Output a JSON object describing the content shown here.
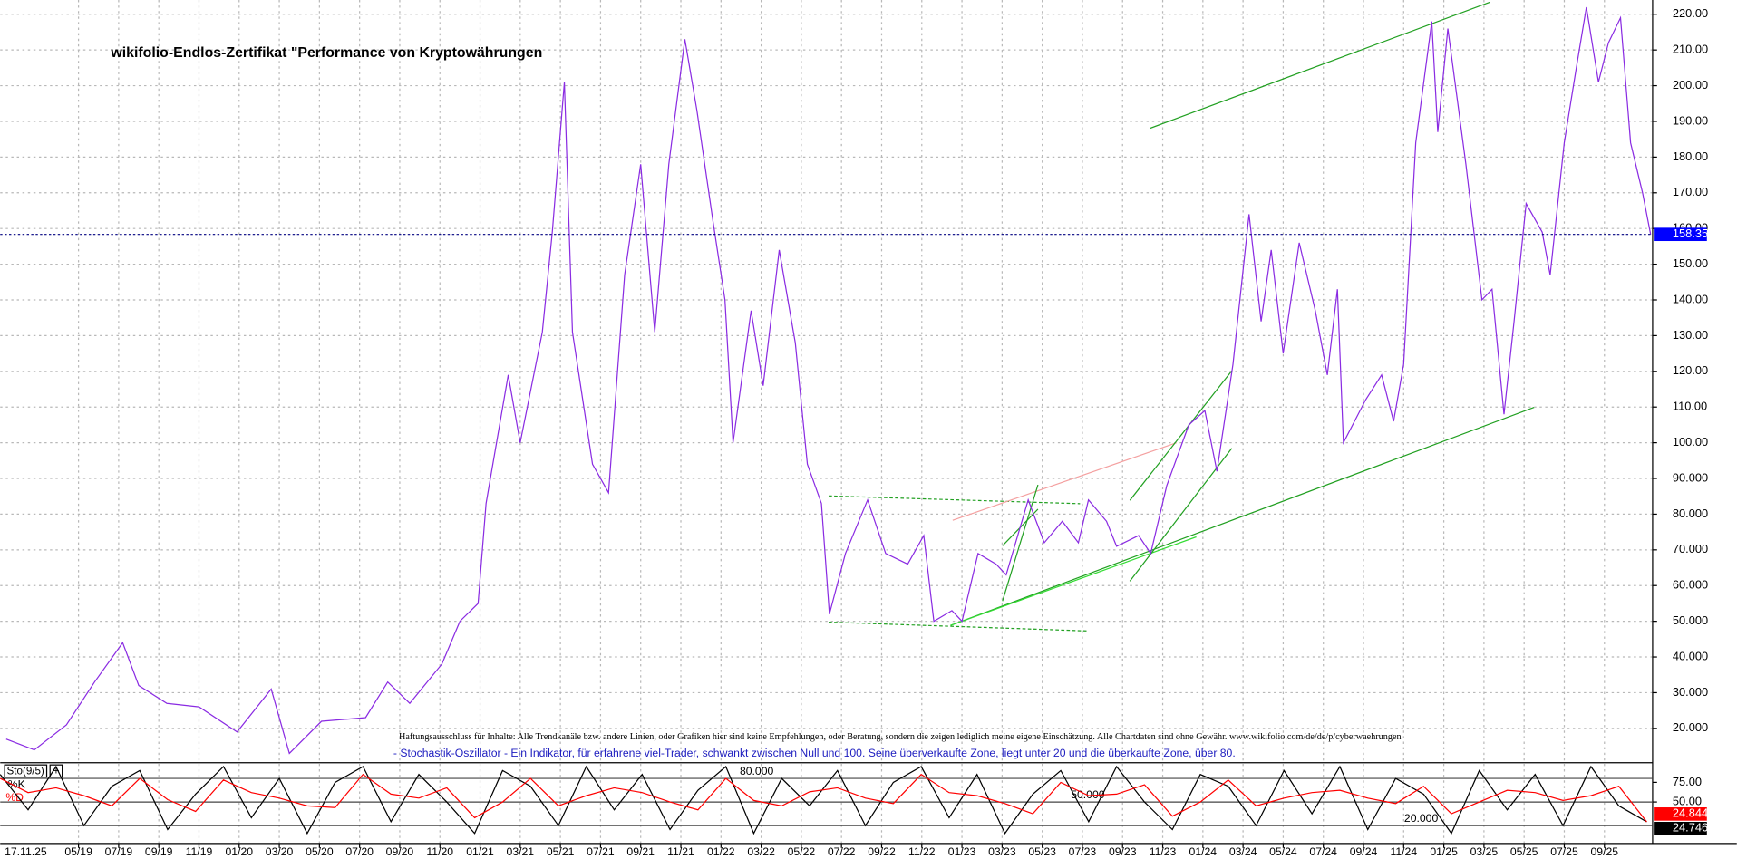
{
  "chart_data": [
    {
      "type": "line",
      "title": "wikifolio-Endlos-Zertifikat \"Performance von Kryptowährungen",
      "disclaimer": "Haftungsausschluss für Inhalte: Alle Trendkanäle bzw. andere Linien, oder Grafiken hier sind keine Empfehlungen, oder Beratung, sondern die zeigen lediglich meine eigene Einschätzung. Alle Chartdaten sind ohne Gewähr.  www.wikifolio.com/de/de/p/cyberwaehrungen",
      "cursor_date": "17.11.25",
      "color": "#8a2be2",
      "x": [
        0.3,
        1.7,
        3.3,
        4.7,
        6.1,
        6.9,
        8.3,
        9.9,
        11.8,
        13.5,
        14.4,
        16.0,
        18.2,
        19.3,
        20.4,
        22.0,
        22.9,
        23.8,
        24.2,
        25.3,
        25.9,
        27.0,
        27.5,
        28.1,
        28.5,
        29.5,
        30.3,
        31.1,
        31.9,
        32.6,
        33.3,
        34.1,
        34.7,
        35.5,
        36.1,
        36.5,
        37.4,
        38.0,
        38.8,
        39.6,
        40.2,
        40.9,
        41.3,
        42.1,
        43.2,
        44.1,
        45.2,
        46.0,
        46.5,
        47.4,
        47.9,
        48.7,
        49.6,
        50.1,
        51.2,
        52.0,
        52.9,
        53.7,
        54.2,
        55.1,
        55.6,
        56.7,
        57.3,
        58.1,
        59.2,
        60.0,
        60.6,
        61.4,
        62.2,
        62.8,
        63.3,
        63.9,
        64.7,
        65.5,
        66.1,
        66.6,
        66.9,
        68.0,
        68.8,
        69.4,
        69.9,
        70.5,
        71.3,
        71.6,
        72.1,
        73.0,
        73.8,
        74.3,
        74.9,
        75.4,
        76.0,
        76.8,
        77.2,
        77.9,
        78.5,
        79.0,
        79.6,
        80.1,
        80.7,
        81.2,
        81.8,
        82.2
      ],
      "values": [
        17,
        14,
        21,
        33,
        44,
        32,
        27,
        26,
        19,
        31,
        13,
        22,
        23,
        33,
        27,
        38,
        50,
        55,
        83,
        119,
        100,
        131,
        159,
        201,
        131,
        94,
        86,
        147,
        178,
        131,
        178,
        213,
        193,
        162,
        140,
        100,
        137,
        116,
        154,
        128,
        94,
        83,
        52,
        69,
        84,
        69,
        66,
        74,
        50,
        53,
        50,
        69,
        66,
        63,
        84,
        72,
        78,
        72,
        84,
        78,
        71,
        74,
        69,
        88,
        105,
        109,
        92,
        122,
        164,
        134,
        154,
        125,
        156,
        137,
        119,
        143,
        100,
        112,
        119,
        106,
        122,
        184,
        218,
        187,
        216,
        178,
        140,
        143,
        108,
        134,
        167,
        159,
        147,
        184,
        205,
        222,
        201,
        212,
        219,
        184,
        170,
        158.35
      ],
      "xlim": [
        0,
        82.3
      ],
      "xticks": [
        {
          "value": 3.9,
          "label": "05/19"
        },
        {
          "value": 5.9,
          "label": "07/19"
        },
        {
          "value": 7.9,
          "label": "09/19"
        },
        {
          "value": 9.9,
          "label": "11/19"
        },
        {
          "value": 11.9,
          "label": "01/20"
        },
        {
          "value": 13.9,
          "label": "03/20"
        },
        {
          "value": 15.9,
          "label": "05/20"
        },
        {
          "value": 17.9,
          "label": "07/20"
        },
        {
          "value": 19.9,
          "label": "09/20"
        },
        {
          "value": 21.9,
          "label": "11/20"
        },
        {
          "value": 23.9,
          "label": "01/21"
        },
        {
          "value": 25.9,
          "label": "03/21"
        },
        {
          "value": 27.9,
          "label": "05/21"
        },
        {
          "value": 29.9,
          "label": "07/21"
        },
        {
          "value": 31.9,
          "label": "09/21"
        },
        {
          "value": 33.9,
          "label": "11/21"
        },
        {
          "value": 35.9,
          "label": "01/22"
        },
        {
          "value": 37.9,
          "label": "03/22"
        },
        {
          "value": 39.9,
          "label": "05/22"
        },
        {
          "value": 41.9,
          "label": "07/22"
        },
        {
          "value": 43.9,
          "label": "09/22"
        },
        {
          "value": 45.9,
          "label": "11/22"
        },
        {
          "value": 47.9,
          "label": "01/23"
        },
        {
          "value": 49.9,
          "label": "03/23"
        },
        {
          "value": 51.9,
          "label": "05/23"
        },
        {
          "value": 53.9,
          "label": "07/23"
        },
        {
          "value": 55.9,
          "label": "09/23"
        },
        {
          "value": 57.9,
          "label": "11/23"
        },
        {
          "value": 59.9,
          "label": "01/24"
        },
        {
          "value": 61.9,
          "label": "03/24"
        },
        {
          "value": 63.9,
          "label": "05/24"
        },
        {
          "value": 65.9,
          "label": "07/24"
        },
        {
          "value": 67.9,
          "label": "09/24"
        },
        {
          "value": 69.9,
          "label": "11/24"
        },
        {
          "value": 71.9,
          "label": "01/25"
        },
        {
          "value": 73.9,
          "label": "03/25"
        },
        {
          "value": 75.9,
          "label": "05/25"
        },
        {
          "value": 77.9,
          "label": "07/25"
        },
        {
          "value": 79.9,
          "label": "09/25"
        }
      ],
      "ylim": [
        10.7,
        224
      ],
      "yticks": [
        {
          "value": 20,
          "label": "20.000"
        },
        {
          "value": 30,
          "label": "30.000"
        },
        {
          "value": 40,
          "label": "40.000"
        },
        {
          "value": 50,
          "label": "50.000"
        },
        {
          "value": 60,
          "label": "60.000"
        },
        {
          "value": 70,
          "label": "70.000"
        },
        {
          "value": 80,
          "label": "80.000"
        },
        {
          "value": 90,
          "label": "90.000"
        },
        {
          "value": 100,
          "label": "100.00"
        },
        {
          "value": 110,
          "label": "110.00"
        },
        {
          "value": 120,
          "label": "120.00"
        },
        {
          "value": 130,
          "label": "130.00"
        },
        {
          "value": 140,
          "label": "140.00"
        },
        {
          "value": 150,
          "label": "150.00"
        },
        {
          "value": 160,
          "label": "160.00"
        },
        {
          "value": 170,
          "label": "170.00"
        },
        {
          "value": 180,
          "label": "180.00"
        },
        {
          "value": 190,
          "label": "190.00"
        },
        {
          "value": 200,
          "label": "200.00"
        },
        {
          "value": 210,
          "label": "210.00"
        },
        {
          "value": 220,
          "label": "220.00"
        }
      ],
      "grid": true
    },
    {
      "type": "line",
      "indicator": "Sto(9/5)",
      "note": "- Stochastik-Oszillator - Ein Indikator, für erfahrene viel-Trader, schwankt zwischen Null und 100. Seine überverkaufte Zone, liegt unter 20 und die überkaufte Zone, über 80.",
      "x": [
        0,
        1.39,
        2.78,
        4.17,
        5.56,
        6.95,
        8.34,
        9.73,
        11.12,
        12.51,
        13.9,
        15.29,
        16.68,
        18.07,
        19.46,
        20.85,
        22.24,
        23.63,
        25.02,
        26.41,
        27.8,
        29.19,
        30.58,
        31.97,
        33.36,
        34.75,
        36.14,
        37.53,
        38.92,
        40.31,
        41.7,
        43.09,
        44.48,
        45.87,
        47.26,
        48.65,
        50.04,
        51.43,
        52.82,
        54.21,
        55.6,
        56.99,
        58.38,
        59.77,
        61.16,
        62.55,
        63.94,
        65.33,
        66.72,
        68.11,
        69.5,
        70.89,
        72.28,
        73.67,
        75.06,
        76.45,
        77.84,
        79.23,
        80.62,
        82.01
      ],
      "series": [
        {
          "name": "%K",
          "color": "#000000",
          "values": [
            85,
            40,
            95,
            20,
            70,
            90,
            15,
            60,
            95,
            30,
            80,
            10,
            75,
            95,
            25,
            85,
            50,
            10,
            90,
            70,
            20,
            95,
            40,
            85,
            15,
            65,
            95,
            10,
            80,
            45,
            90,
            20,
            75,
            95,
            30,
            85,
            10,
            60,
            90,
            25,
            95,
            50,
            15,
            85,
            70,
            20,
            90,
            35,
            95,
            15,
            80,
            60,
            10,
            90,
            40,
            85,
            20,
            95,
            45,
            24.746
          ]
        },
        {
          "name": "%D",
          "color": "#ff0000",
          "values": [
            80,
            62,
            68,
            58,
            45,
            80,
            53,
            38,
            78,
            62,
            55,
            45,
            43,
            85,
            60,
            55,
            68,
            30,
            50,
            80,
            45,
            58,
            68,
            62,
            50,
            40,
            80,
            52,
            45,
            63,
            68,
            55,
            48,
            85,
            62,
            58,
            48,
            35,
            75,
            58,
            60,
            72,
            32,
            50,
            78,
            45,
            55,
            62,
            65,
            55,
            48,
            70,
            35,
            50,
            65,
            62,
            52,
            58,
            70,
            24.844
          ]
        }
      ],
      "xlim": [
        0,
        82.3
      ],
      "ylim": [
        0,
        100
      ],
      "yticks": [
        {
          "value": 75,
          "label": "75.00"
        },
        {
          "value": 50,
          "label": "50.00"
        }
      ],
      "levels": [
        {
          "value": 80,
          "label": "80.000"
        },
        {
          "value": 50,
          "label": "50.000"
        },
        {
          "value": 20,
          "label": "20.000"
        }
      ]
    }
  ]
}
